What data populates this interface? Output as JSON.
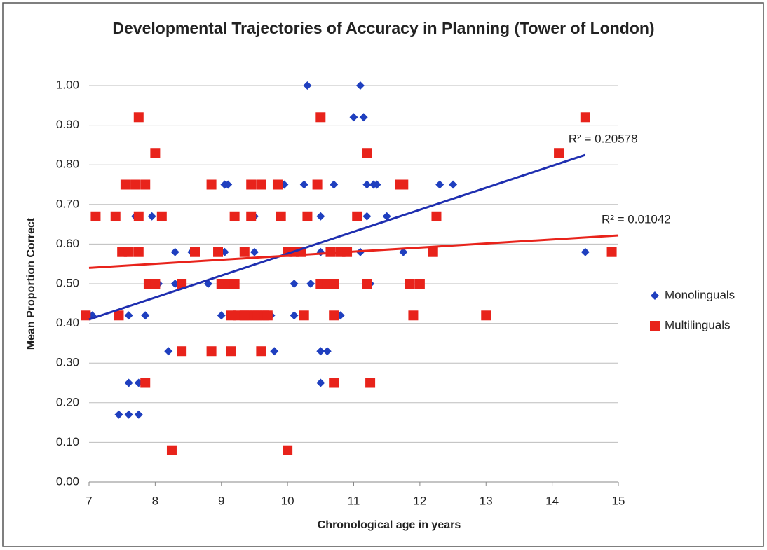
{
  "chart_data": {
    "type": "scatter",
    "title": "Developmental Trajectories of Accuracy in Planning (Tower of London)",
    "x_label": "Chronological age in years",
    "y_label": "Mean Proportion Correct",
    "xlim": [
      7,
      15
    ],
    "xticks": [
      7,
      8,
      9,
      10,
      11,
      12,
      13,
      14,
      15
    ],
    "ylim": [
      0,
      1
    ],
    "yticks": [
      {
        "value": 0,
        "label": "0.00"
      },
      {
        "value": 0.1,
        "label": "0.10"
      },
      {
        "value": 0.2,
        "label": "0.20"
      },
      {
        "value": 0.3,
        "label": "0.30"
      },
      {
        "value": 0.4,
        "label": "0.40"
      },
      {
        "value": 0.5,
        "label": "0.50"
      },
      {
        "value": 0.6,
        "label": "0.60"
      },
      {
        "value": 0.7,
        "label": "0.70"
      },
      {
        "value": 0.8,
        "label": "0.80"
      },
      {
        "value": 0.9,
        "label": "0.90"
      },
      {
        "value": 1,
        "label": "1.00"
      }
    ],
    "grid": true,
    "legend": "right",
    "series": [
      {
        "name": "Monolinguals",
        "color": "#1f3fbf",
        "marker": "diamond",
        "x": [
          7.05,
          7.45,
          7.6,
          7.75,
          7.6,
          7.75,
          7.6,
          7.85,
          7.7,
          7.95,
          8.05,
          8.2,
          8.3,
          8.3,
          8.55,
          8.8,
          9.0,
          9.05,
          9.05,
          9.1,
          9.2,
          9.5,
          9.5,
          9.75,
          9.8,
          9.95,
          10.05,
          10.1,
          10.1,
          10.25,
          10.3,
          10.35,
          10.5,
          10.5,
          10.5,
          10.6,
          10.5,
          10.7,
          10.8,
          11.0,
          11.1,
          11.1,
          11.15,
          11.2,
          11.2,
          11.3,
          11.35,
          11.25,
          11.5,
          11.75,
          12.3,
          12.5,
          14.5
        ],
        "values": [
          0.42,
          0.17,
          0.17,
          0.17,
          0.25,
          0.25,
          0.42,
          0.42,
          0.67,
          0.67,
          0.5,
          0.33,
          0.58,
          0.5,
          0.58,
          0.5,
          0.42,
          0.58,
          0.75,
          0.75,
          0.5,
          0.67,
          0.58,
          0.42,
          0.33,
          0.75,
          0.58,
          0.5,
          0.42,
          0.75,
          1.0,
          0.5,
          0.67,
          0.58,
          0.33,
          0.33,
          0.25,
          0.75,
          0.42,
          0.92,
          1.0,
          0.58,
          0.92,
          0.67,
          0.75,
          0.75,
          0.75,
          0.5,
          0.67,
          0.58,
          0.75,
          0.75,
          0.58
        ]
      },
      {
        "name": "Multilinguals",
        "color": "#e8231b",
        "marker": "square",
        "x": [
          6.95,
          7.1,
          7.4,
          7.45,
          7.5,
          7.55,
          7.6,
          7.7,
          7.75,
          7.75,
          7.75,
          7.85,
          7.85,
          7.9,
          8.0,
          8.0,
          8.1,
          8.25,
          8.4,
          8.4,
          8.6,
          8.85,
          8.85,
          8.95,
          9.0,
          9.1,
          9.15,
          9.15,
          9.2,
          9.2,
          9.25,
          9.35,
          9.35,
          9.4,
          9.45,
          9.45,
          9.5,
          9.55,
          9.6,
          9.6,
          9.65,
          9.7,
          9.85,
          9.9,
          10.0,
          10.0,
          10.1,
          10.2,
          10.25,
          10.3,
          10.45,
          10.5,
          10.5,
          10.6,
          10.65,
          10.7,
          10.7,
          10.7,
          10.8,
          10.9,
          11.05,
          11.2,
          11.2,
          11.25,
          11.7,
          11.75,
          11.85,
          11.9,
          12.0,
          12.2,
          12.25,
          13.0,
          14.1,
          14.5,
          14.9
        ],
        "values": [
          0.42,
          0.67,
          0.67,
          0.42,
          0.58,
          0.75,
          0.58,
          0.75,
          0.58,
          0.67,
          0.92,
          0.75,
          0.25,
          0.5,
          0.83,
          0.5,
          0.67,
          0.08,
          0.5,
          0.33,
          0.58,
          0.75,
          0.33,
          0.58,
          0.5,
          0.5,
          0.42,
          0.33,
          0.67,
          0.5,
          0.42,
          0.58,
          0.42,
          0.42,
          0.67,
          0.75,
          0.42,
          0.42,
          0.75,
          0.33,
          0.42,
          0.42,
          0.75,
          0.67,
          0.58,
          0.08,
          0.58,
          0.58,
          0.42,
          0.67,
          0.75,
          0.92,
          0.5,
          0.5,
          0.58,
          0.5,
          0.42,
          0.25,
          0.58,
          0.58,
          0.67,
          0.83,
          0.5,
          0.25,
          0.75,
          0.75,
          0.5,
          0.42,
          0.5,
          0.58,
          0.67,
          0.42,
          0.83,
          0.92,
          0.58
        ]
      }
    ],
    "trendlines": [
      {
        "label": "R² = 0.20578",
        "color": "#1f2fb0",
        "x": [
          7,
          14.5
        ],
        "y": [
          0.41,
          0.825
        ]
      },
      {
        "label": "R² = 0.01042",
        "color": "#e8231b",
        "x": [
          7,
          15
        ],
        "y": [
          0.54,
          0.622
        ]
      }
    ]
  }
}
